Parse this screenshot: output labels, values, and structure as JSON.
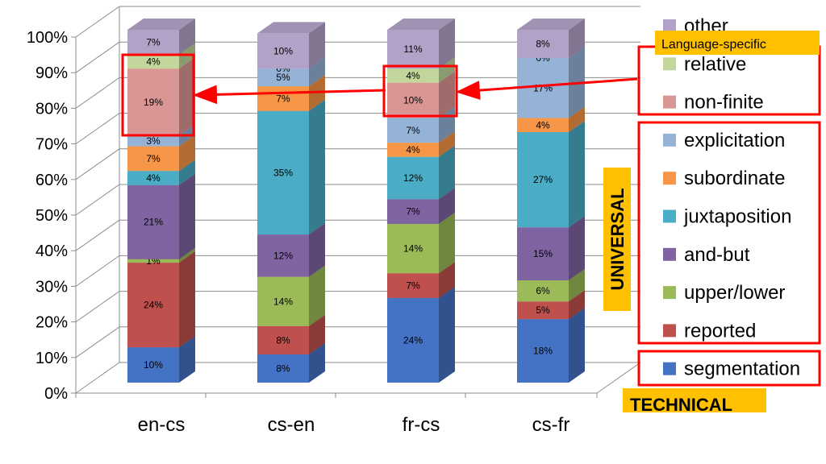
{
  "chart_data": {
    "type": "bar",
    "stacked": true,
    "three_d": true,
    "categories": [
      "en-cs",
      "cs-en",
      "fr-cs",
      "cs-fr"
    ],
    "y_ticks": [
      "0%",
      "10%",
      "20%",
      "30%",
      "40%",
      "50%",
      "60%",
      "70%",
      "80%",
      "90%",
      "100%"
    ],
    "ylim": [
      0,
      100
    ],
    "grid": true,
    "legend_placement": "right",
    "series": [
      {
        "name": "segmentation",
        "color": "#4472c4",
        "values": [
          10,
          8,
          24,
          18
        ],
        "labels": [
          "10%",
          "8%",
          "24%",
          "18%"
        ]
      },
      {
        "name": "reported",
        "color": "#c0504d",
        "values": [
          24,
          8,
          7,
          5
        ],
        "labels": [
          "24%",
          "8%",
          "7%",
          "5%"
        ]
      },
      {
        "name": "upper/lower",
        "color": "#9bbb59",
        "values": [
          1,
          14,
          14,
          6
        ],
        "labels": [
          "1%",
          "14%",
          "14%",
          "6%"
        ]
      },
      {
        "name": "and-but",
        "color": "#8064a2",
        "values": [
          21,
          12,
          7,
          15
        ],
        "labels": [
          "21%",
          "12%",
          "7%",
          "15%"
        ]
      },
      {
        "name": "juxtaposition",
        "color": "#4bacc6",
        "values": [
          4,
          35,
          12,
          27
        ],
        "labels": [
          "4%",
          "35%",
          "12%",
          "27%"
        ]
      },
      {
        "name": "subordinate",
        "color": "#f79646",
        "values": [
          7,
          7,
          4,
          4
        ],
        "labels": [
          "7%",
          "7%",
          "4%",
          "4%"
        ]
      },
      {
        "name": "explicitation",
        "color": "#95b3d7",
        "values": [
          3,
          5,
          7,
          17
        ],
        "labels": [
          "3%",
          "5%",
          "7%",
          "17%"
        ]
      },
      {
        "name": "non-finite",
        "color": "#da9694",
        "values": [
          19,
          0,
          10,
          0
        ],
        "labels": [
          "19%",
          "",
          "10%",
          ""
        ]
      },
      {
        "name": "relative",
        "color": "#c3d69b",
        "values": [
          4,
          0,
          4,
          0
        ],
        "labels": [
          "4%",
          "0%",
          "4%",
          "0%"
        ]
      },
      {
        "name": "other",
        "color": "#b3a2c7",
        "values": [
          7,
          10,
          11,
          8
        ],
        "labels": [
          "7%",
          "10%",
          "11%",
          "8%"
        ]
      }
    ],
    "annotations": {
      "language_specific": "Language-specific",
      "universal": "UNIVERSAL",
      "technical": "TECHNICAL",
      "highlight_color": "#ff0000",
      "tag_color": "#ffc000"
    }
  }
}
